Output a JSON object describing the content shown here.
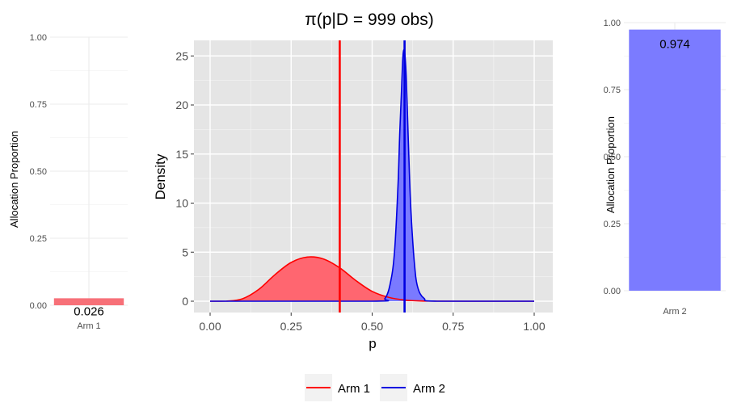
{
  "main_title": "π(p|D = 999 obs)",
  "colors": {
    "arm1": "#ff0000",
    "arm1_fill": "#ff6670",
    "arm2": "#0000e0",
    "arm2_fill": "#7a7aff",
    "panel_bg": "#e5e5e5",
    "grid_major": "#ffffff",
    "light_grid": "#ebebeb"
  },
  "chart_data": [
    {
      "id": "left_bar",
      "type": "bar",
      "categories": [
        "Arm 1"
      ],
      "values": [
        0.026
      ],
      "value_labels": [
        "0.026"
      ],
      "ylabel": "Allocation Proportion",
      "ylim": [
        0,
        1
      ],
      "y_ticks": [
        0,
        0.25,
        0.5,
        0.75,
        1
      ],
      "y_tick_labels": [
        "0.00",
        "0.25",
        "0.50",
        "0.75",
        "1.00"
      ],
      "color": "#f77078",
      "grid": true
    },
    {
      "id": "density",
      "type": "area",
      "xlabel": "p",
      "ylabel": "Density",
      "xlim": [
        0,
        1
      ],
      "ylim": [
        0,
        25.5
      ],
      "x_ticks": [
        0,
        0.25,
        0.5,
        0.75,
        1
      ],
      "x_tick_labels": [
        "0.00",
        "0.25",
        "0.50",
        "0.75",
        "1.00"
      ],
      "y_ticks": [
        0,
        5,
        10,
        15,
        20,
        25
      ],
      "y_tick_labels": [
        "0",
        "5",
        "10",
        "15",
        "20",
        "25"
      ],
      "series": [
        {
          "name": "Arm 1",
          "x": [
            0,
            0.05,
            0.1,
            0.15,
            0.2,
            0.25,
            0.3,
            0.35,
            0.4,
            0.45,
            0.5,
            0.55,
            0.6,
            0.65,
            0.7,
            0.8,
            1
          ],
          "y": [
            0,
            0.01,
            0.25,
            1.2,
            2.7,
            3.95,
            4.5,
            4.3,
            3.4,
            2.1,
            1.0,
            0.4,
            0.12,
            0.03,
            0.01,
            0,
            0
          ],
          "reference_line_x": 0.4
        },
        {
          "name": "Arm 2",
          "x": [
            0,
            0.5,
            0.54,
            0.56,
            0.57,
            0.58,
            0.585,
            0.59,
            0.595,
            0.6,
            0.605,
            0.61,
            0.615,
            0.62,
            0.63,
            0.64,
            0.66,
            0.7,
            1
          ],
          "y": [
            0,
            0,
            0.3,
            2.5,
            5.5,
            12,
            17,
            21,
            25,
            25.4,
            23,
            18,
            13,
            9,
            4,
            1.5,
            0.3,
            0,
            0
          ],
          "reference_line_x": 0.6
        }
      ],
      "legend": {
        "position": "bottom",
        "entries": [
          "Arm 1",
          "Arm 2"
        ]
      },
      "grid": true
    },
    {
      "id": "right_bar",
      "type": "bar",
      "categories": [
        "Arm 2"
      ],
      "values": [
        0.974
      ],
      "value_labels": [
        "0.974"
      ],
      "ylabel": "Allocation Proportion",
      "ylim": [
        0,
        1
      ],
      "y_ticks": [
        0,
        0.25,
        0.5,
        0.75,
        1
      ],
      "y_tick_labels": [
        "0.00",
        "0.25",
        "0.50",
        "0.75",
        "1.00"
      ],
      "color": "#7b7bff",
      "grid": true
    }
  ]
}
